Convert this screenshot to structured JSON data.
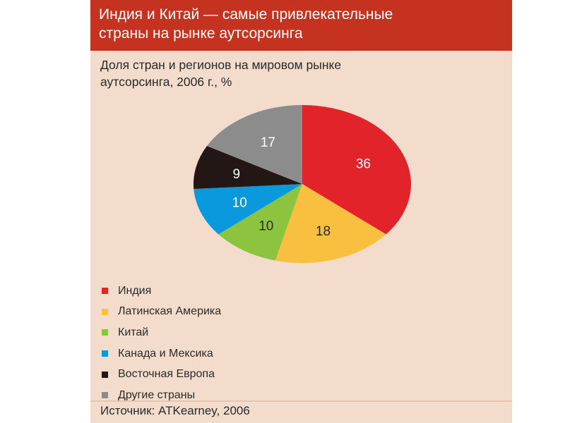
{
  "header": {
    "line1": "Индия и Китай — самые привлекательные",
    "line2": "страны на рынке аутсорсинга"
  },
  "subtitle": {
    "line1": "Доля стран и регионов на мировом рынке",
    "line2": "аутсорсинга, 2006 г., %"
  },
  "source": "Источник: ATKearney, 2006",
  "colors": {
    "header_bg": "#c5321f",
    "panel_bg": "#f3dccb",
    "india": "#e3232a",
    "latin_america": "#f8c03e",
    "china": "#8cc440",
    "canada_mexico": "#0a99dc",
    "eastern_europe": "#221714",
    "other": "#8c8c8c"
  },
  "chart_data": {
    "type": "pie",
    "title": "Доля стран и регионов на мировом рынке аутсорсинга, 2006 г., %",
    "start": "12 o'clock, clockwise",
    "slices": [
      {
        "label": "Индия",
        "value": 36,
        "value_label": "36",
        "color": "#e3232a",
        "text_color": "#ffffff"
      },
      {
        "label": "Латинская Америка",
        "value": 18,
        "value_label": "18",
        "color": "#f8c03e",
        "text_color": "#2a2a2a"
      },
      {
        "label": "Китай",
        "value": 10,
        "value_label": "10",
        "color": "#8cc440",
        "text_color": "#2a2a2a"
      },
      {
        "label": "Канада и Мексика",
        "value": 10,
        "value_label": "10",
        "color": "#0a99dc",
        "text_color": "#ffffff"
      },
      {
        "label": "Восточная Европа",
        "value": 9,
        "value_label": "9",
        "color": "#221714",
        "text_color": "#ffffff"
      },
      {
        "label": "Другие страны",
        "value": 17,
        "value_label": "17",
        "color": "#8c8c8c",
        "text_color": "#ffffff"
      }
    ],
    "legend_position": "bottom-left"
  }
}
